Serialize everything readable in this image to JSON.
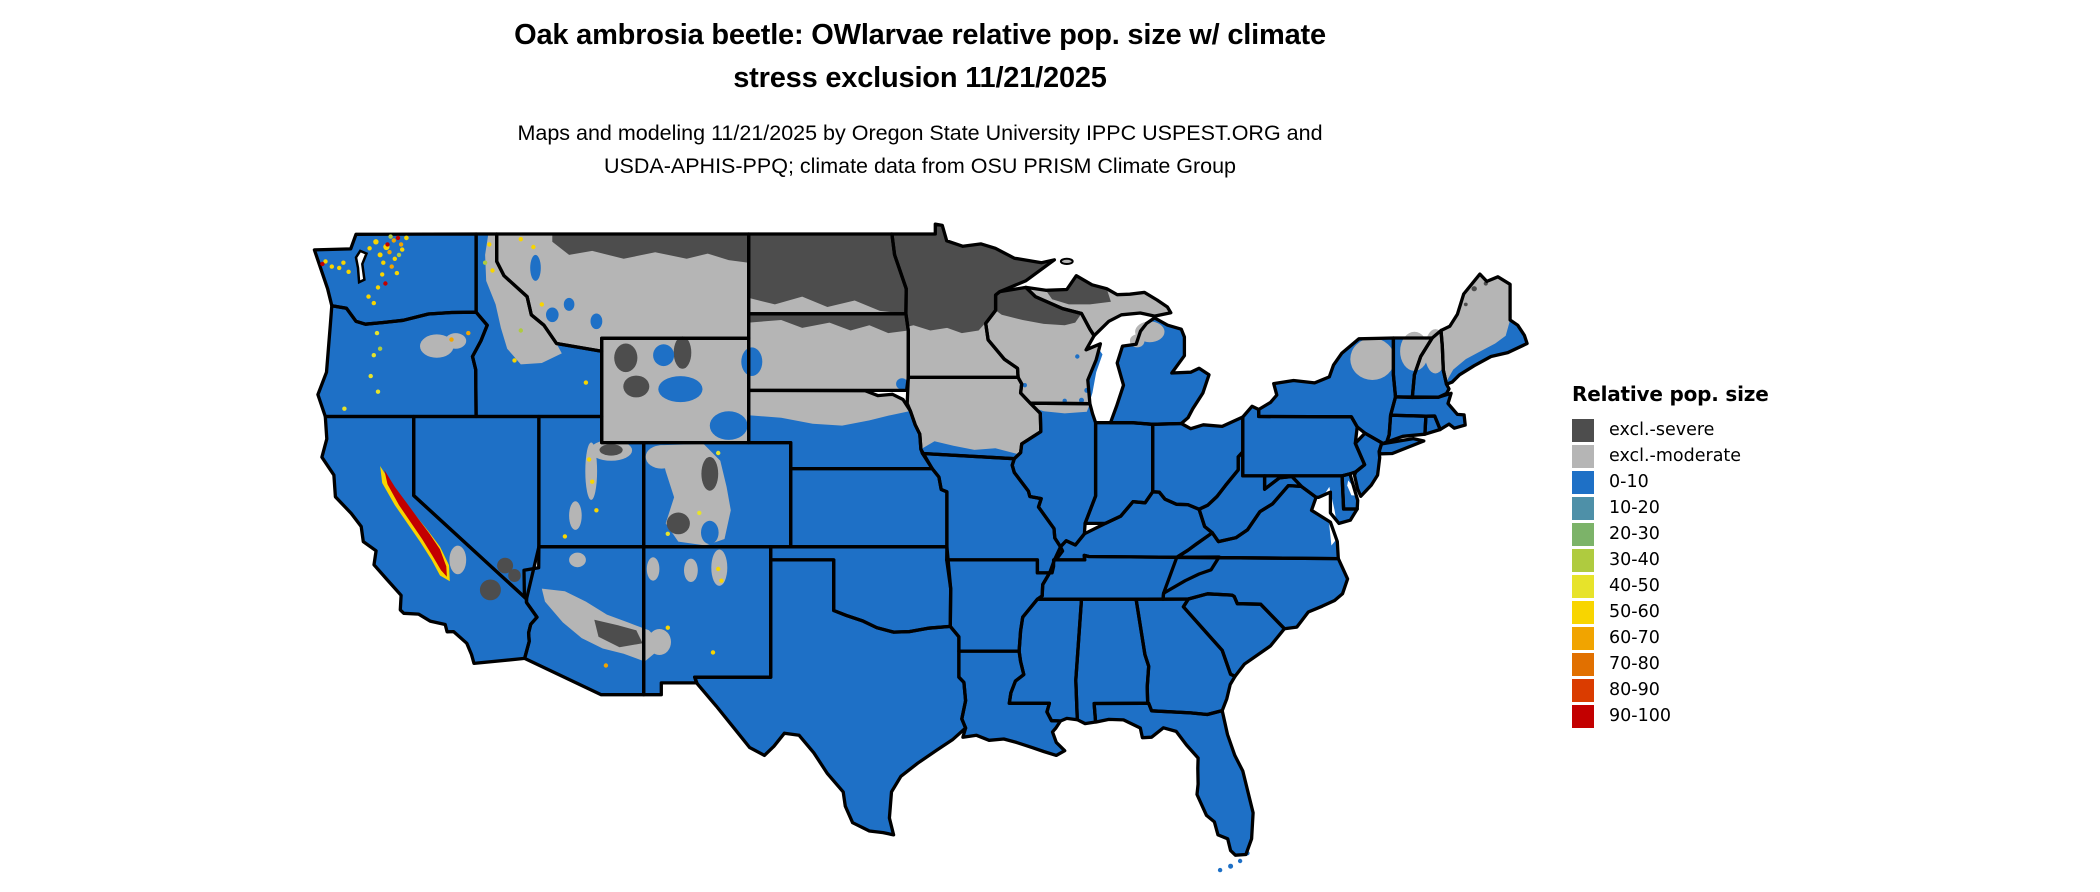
{
  "title": {
    "line1": "Oak ambrosia beetle: OWlarvae relative pop. size w/ climate",
    "line2": "stress exclusion 11/21/2025"
  },
  "subtitle": {
    "line1": "Maps and modeling 11/21/2025 by Oregon State University IPPC USPEST.ORG and",
    "line2": "USDA-APHIS-PPQ; climate data from OSU PRISM Climate Group"
  },
  "legend": {
    "title": "Relative pop. size",
    "items": [
      {
        "id": "excl-severe",
        "label": "excl.-severe",
        "color": "#4D4D4D"
      },
      {
        "id": "excl-moderate",
        "label": "excl.-moderate",
        "color": "#B5B5B5"
      },
      {
        "id": "0-10",
        "label": "0-10",
        "color": "#1E70C6"
      },
      {
        "id": "10-20",
        "label": "10-20",
        "color": "#4E90A8"
      },
      {
        "id": "20-30",
        "label": "20-30",
        "color": "#7CB369"
      },
      {
        "id": "30-40",
        "label": "30-40",
        "color": "#AFCB3F"
      },
      {
        "id": "40-50",
        "label": "40-50",
        "color": "#E7E32A"
      },
      {
        "id": "50-60",
        "label": "50-60",
        "color": "#F8D500"
      },
      {
        "id": "60-70",
        "label": "60-70",
        "color": "#F1A400"
      },
      {
        "id": "70-80",
        "label": "70-80",
        "color": "#E17000"
      },
      {
        "id": "80-90",
        "label": "80-90",
        "color": "#DA3C00"
      },
      {
        "id": "90-100",
        "label": "90-100",
        "color": "#C30000"
      }
    ]
  },
  "map": {
    "region": "Continental United States",
    "background": "#FFFFFF",
    "border_color": "#000000",
    "states": {
      "WA": "0-10",
      "OR": "0-10",
      "CA": "0-10",
      "NV": "0-10",
      "ID": "0-10",
      "UT": "0-10",
      "AZ": "0-10",
      "NM": "0-10",
      "CO": "0-10",
      "NE": "0-10",
      "KS": "0-10",
      "OK": "0-10",
      "TX": "0-10",
      "MO": "0-10",
      "AR": "0-10",
      "LA": "0-10",
      "MS": "0-10",
      "AL": "0-10",
      "GA": "0-10",
      "FL": "0-10",
      "SC": "0-10",
      "NC": "0-10",
      "TN": "0-10",
      "KY": "0-10",
      "VA": "0-10",
      "WV": "0-10",
      "OH": "0-10",
      "IN": "0-10",
      "IL": "0-10",
      "MI_LOWER": "0-10",
      "NY": "0-10",
      "PA": "0-10",
      "NJ": "0-10",
      "MD": "0-10",
      "DE": "0-10",
      "CT": "0-10",
      "RI": "0-10",
      "MA": "0-10",
      "NH": "0-10",
      "VT": "0-10",
      "MT": "excl-moderate",
      "WY": "excl-moderate",
      "SD": "excl-moderate",
      "IA": "excl-moderate",
      "WI": "excl-moderate",
      "ME": "excl-moderate",
      "MN": "excl-moderate",
      "MI_UP": "excl-moderate",
      "ND": "excl-severe"
    },
    "overlays": [
      {
        "id": "nd-south-band",
        "class": "excl-moderate"
      },
      {
        "id": "ne-north-band",
        "class": "excl-moderate"
      },
      {
        "id": "id-central",
        "class": "excl-moderate"
      },
      {
        "id": "or-blue-mtns",
        "class": "excl-moderate"
      },
      {
        "id": "ut-uinta-halo",
        "class": "excl-moderate"
      },
      {
        "id": "ut-wasatch",
        "class": "excl-moderate"
      },
      {
        "id": "co-rockies-band",
        "class": "excl-moderate"
      },
      {
        "id": "co-nw-plateau",
        "class": "excl-moderate"
      },
      {
        "id": "nm-sangre",
        "class": "excl-moderate"
      },
      {
        "id": "nm-jemez",
        "class": "excl-moderate"
      },
      {
        "id": "nm-chuska",
        "class": "excl-moderate"
      },
      {
        "id": "nm-gila",
        "class": "excl-moderate"
      },
      {
        "id": "az-mogollon",
        "class": "excl-moderate"
      },
      {
        "id": "az-kaibab",
        "class": "excl-moderate"
      },
      {
        "id": "ca-white-mtns",
        "class": "excl-moderate"
      },
      {
        "id": "il-north-strip",
        "class": "excl-moderate"
      },
      {
        "id": "mi-north-lp",
        "class": "excl-moderate"
      },
      {
        "id": "isle-royale",
        "class": "excl-moderate"
      },
      {
        "id": "ny-adirondacks",
        "class": "excl-moderate"
      },
      {
        "id": "vt-north",
        "class": "excl-moderate"
      },
      {
        "id": "nh-north",
        "class": "excl-moderate"
      },
      {
        "id": "mt-north-band",
        "class": "excl-severe"
      },
      {
        "id": "mn-north",
        "class": "excl-severe"
      },
      {
        "id": "sd-ne-fringe",
        "class": "excl-severe"
      },
      {
        "id": "wi-superior-band",
        "class": "excl-severe"
      },
      {
        "id": "up-west-patch",
        "class": "excl-severe"
      },
      {
        "id": "wy-absaroka",
        "class": "excl-severe"
      },
      {
        "id": "wy-bighorn-mtns",
        "class": "excl-severe"
      },
      {
        "id": "wy-wind-river",
        "class": "excl-severe"
      },
      {
        "id": "co-front-range",
        "class": "excl-severe"
      },
      {
        "id": "co-san-juan",
        "class": "excl-severe"
      },
      {
        "id": "ut-uinta-core",
        "class": "excl-severe"
      },
      {
        "id": "az-white-mtns-core",
        "class": "excl-severe"
      },
      {
        "id": "nv-spring-mtns",
        "class": "excl-severe"
      },
      {
        "id": "ca-mojave-ranges",
        "class": "excl-severe"
      },
      {
        "id": "me-north-specks",
        "class": "excl-severe"
      },
      {
        "id": "ia-south-fringe",
        "class": "0-10"
      },
      {
        "id": "wy-bighorn-basin",
        "class": "0-10"
      },
      {
        "id": "wy-central-basin",
        "class": "0-10"
      },
      {
        "id": "wy-se-plains",
        "class": "0-10"
      },
      {
        "id": "black-hills",
        "class": "0-10"
      },
      {
        "id": "mt-west-valleys",
        "class": "0-10"
      },
      {
        "id": "co-west-valleys",
        "class": "0-10"
      },
      {
        "id": "co-san-luis",
        "class": "0-10"
      },
      {
        "id": "wi-lakeshore",
        "class": "0-10"
      },
      {
        "id": "wi-blue-patches",
        "class": "0-10"
      },
      {
        "id": "me-coast",
        "class": "0-10"
      },
      {
        "id": "sd-se-corner",
        "class": "0-10"
      },
      {
        "id": "fl-keys",
        "class": "0-10"
      }
    ],
    "hotspots": [
      {
        "id": "sierra-fringe",
        "class": "50-60"
      },
      {
        "id": "sierra-core",
        "class": "90-100"
      },
      {
        "id": "wa-cascades-yellow",
        "class": "50-60"
      },
      {
        "id": "wa-cascades-orange",
        "class": "60-70"
      },
      {
        "id": "wa-cascades-red",
        "class": "90-100"
      },
      {
        "id": "wa-olympics-specks",
        "class": "50-60"
      },
      {
        "id": "cascades-green-specks",
        "class": "30-40"
      },
      {
        "id": "or-cascades-specks",
        "class": "40-50"
      },
      {
        "id": "or-wallowa-speck",
        "class": "60-70"
      },
      {
        "id": "ut-wasatch-specks",
        "class": "50-60"
      },
      {
        "id": "nm-specks",
        "class": "50-60"
      },
      {
        "id": "co-specks",
        "class": "40-50"
      },
      {
        "id": "id-specks",
        "class": "50-60"
      },
      {
        "id": "mt-specks",
        "class": "50-60"
      },
      {
        "id": "az-speck",
        "class": "60-70"
      }
    ]
  }
}
